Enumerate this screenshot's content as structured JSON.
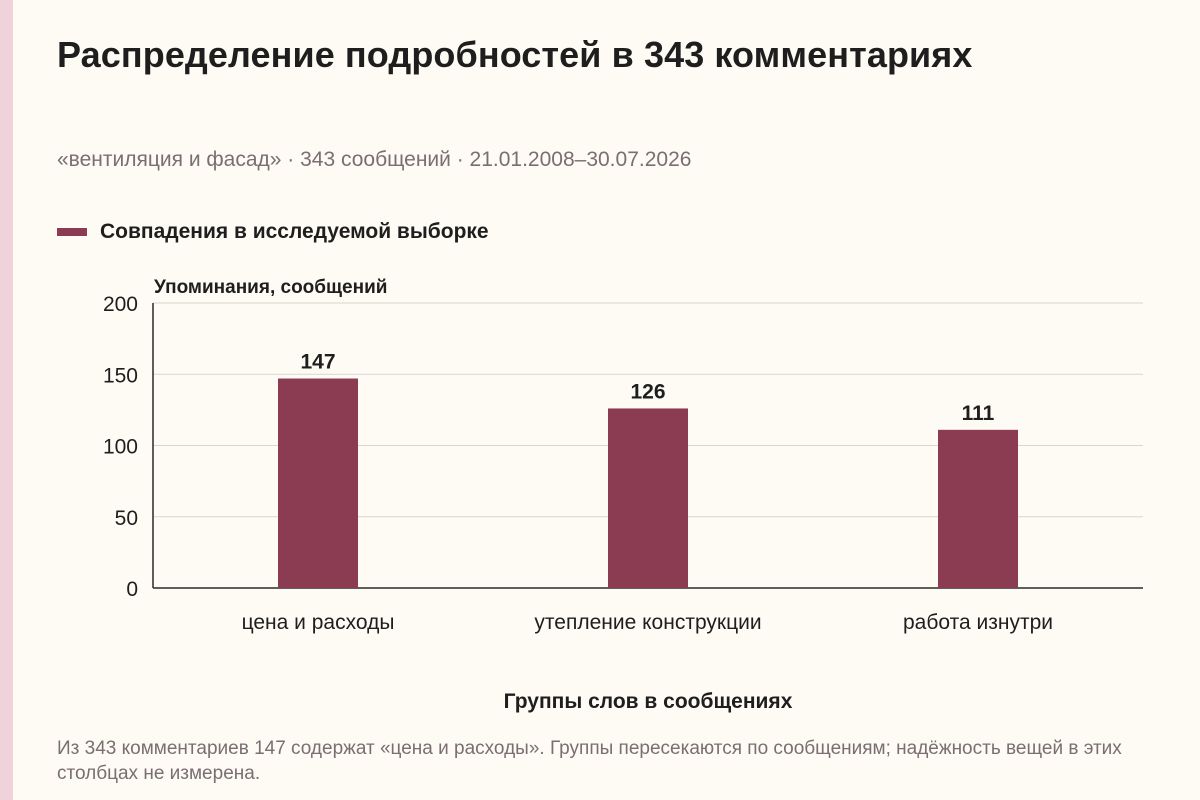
{
  "colors": {
    "background": "#fdfbf3",
    "accent_strip": "#f0d3da",
    "bar": "#8c3c52",
    "grid": "#d9d6cc",
    "axis": "#2b2b2b",
    "text_main": "#1e1e1e",
    "text_muted": "#7a6e72"
  },
  "header": {
    "title": "Распределение подробностей в 343 комментариях",
    "subtitle": "«вентиляция и фасад» · 343 сообщений · 21.01.2008–30.07.2026"
  },
  "chart_data": {
    "type": "bar",
    "categories": [
      "цена и расходы",
      "утепление конструкции",
      "работа изнутри"
    ],
    "series": [
      {
        "name": "Совпадения в исследуемой выборке",
        "values": [
          147,
          126,
          111
        ]
      }
    ],
    "data_labels": [
      "147",
      "126",
      "111"
    ],
    "title": "Распределение подробностей в 343 комментариях",
    "ylabel": "Упоминания, сообщений",
    "xlabel": "Группы слов в сообщениях",
    "ylim": [
      0,
      200
    ],
    "yticks": [
      0,
      50,
      100,
      150,
      200
    ],
    "grid": true,
    "legend": "top-left"
  },
  "footnote": "Из 343 комментариев 147 содержат «цена и расходы». Группы пересекаются по сообщениям; надёжность вещей в этих столбцах не измерена."
}
